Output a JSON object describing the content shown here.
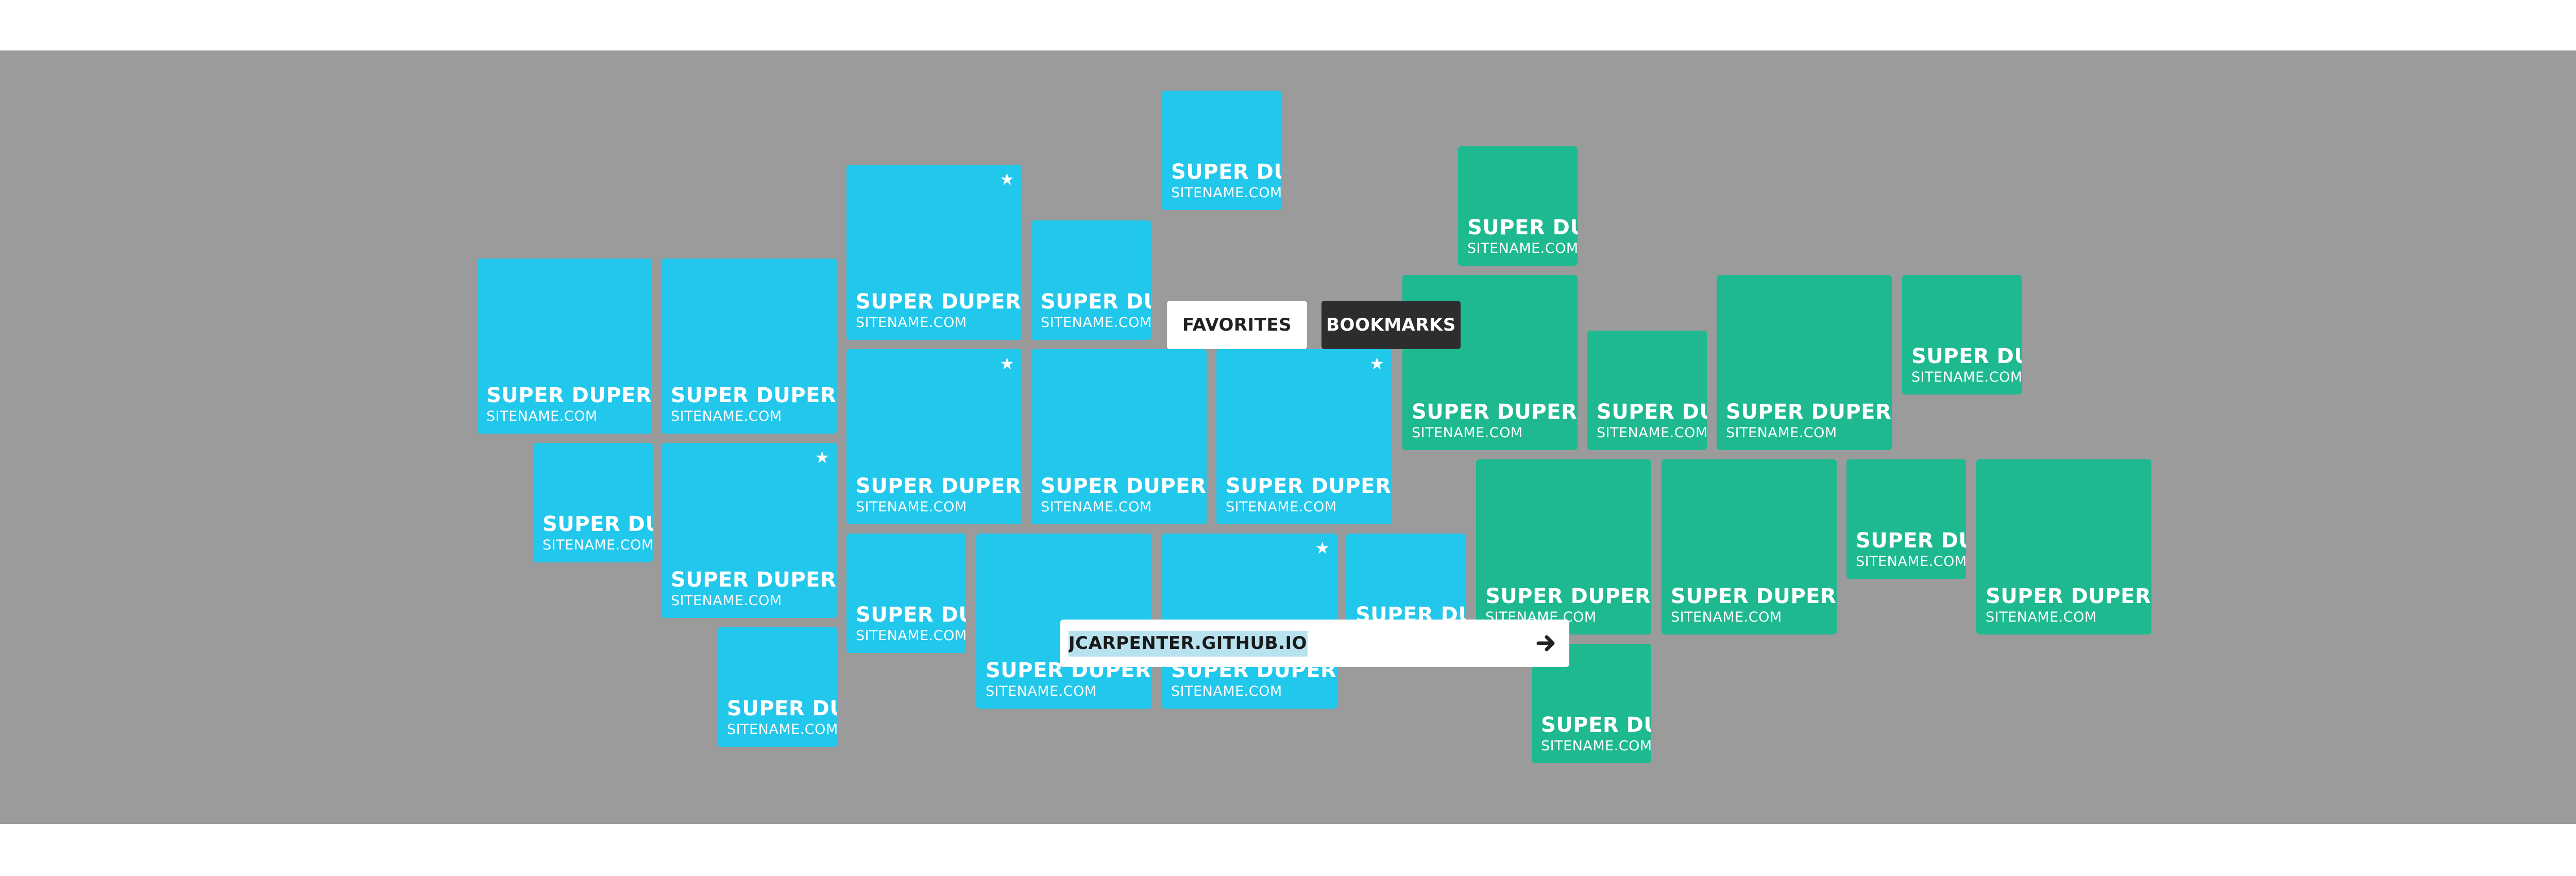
{
  "tiles": [
    {
      "label": "SUPER DUPER",
      "url": "SITENAME.COM",
      "color": "blue"
    },
    {
      "label": "SUPER DUPER",
      "url": "SITENAME.COM",
      "color": "blue"
    },
    {
      "label": "SUPER DU",
      "url": "SITENAME.COM",
      "color": "blue"
    },
    {
      "label": "SUPER DUPER",
      "url": "SITENAME.COM",
      "color": "blue",
      "starred": true
    },
    {
      "label": "SUPER DU",
      "url": "SITENAME.COM",
      "color": "blue"
    },
    {
      "label": "SUPER DUPER",
      "url": "SITENAME.COM",
      "color": "blue",
      "starred": true
    },
    {
      "label": "SUPER DU",
      "url": "SITENAME.COM",
      "color": "blue"
    },
    {
      "label": "SUPER DU",
      "url": "SITENAME.COM",
      "color": "blue"
    },
    {
      "label": "SUPER DUPER",
      "url": "SITENAME.COM",
      "color": "blue",
      "starred": true
    },
    {
      "label": "SUPER DUPER",
      "url": "SITENAME.COM",
      "color": "blue"
    },
    {
      "label": "SUPER DUPER",
      "url": "SITENAME.COM",
      "color": "blue",
      "starred": true
    },
    {
      "label": "SUPER DU",
      "url": "SITENAME.COM",
      "color": "blue"
    },
    {
      "label": "SUPER DUPER",
      "url": "SITENAME.COM",
      "color": "blue"
    },
    {
      "label": "SUPER DUPER",
      "url": "SITENAME.COM",
      "color": "blue",
      "starred": true
    },
    {
      "label": "SUPER DU",
      "url": "SITENAME.COM",
      "color": "blue"
    },
    {
      "label": "SUPER DU",
      "url": "SITENAME.COM",
      "color": "green"
    },
    {
      "label": "SUPER DUPER",
      "url": "SITENAME.COM",
      "color": "green"
    },
    {
      "label": "SUPER DU",
      "url": "SITENAME.COM",
      "color": "green"
    },
    {
      "label": "SUPER DUPER",
      "url": "SITENAME.COM",
      "color": "green"
    },
    {
      "label": "SUPER DU",
      "url": "SITENAME.COM",
      "color": "green"
    },
    {
      "label": "SUPER DUPER",
      "url": "SITENAME.COM",
      "color": "green"
    },
    {
      "label": "SUPER DUPER",
      "url": "SITENAME.COM",
      "color": "green"
    },
    {
      "label": "SUPER DU",
      "url": "SITENAME.COM",
      "color": "green"
    },
    {
      "label": "SUPER DUPER",
      "url": "SITENAME.COM",
      "color": "green"
    },
    {
      "label": "SUPER DU",
      "url": "SITENAME.COM",
      "color": "green"
    }
  ],
  "tabs": {
    "favorites": "FAVORITES",
    "bookmarks": "BOOKMARKS"
  },
  "url_bar": {
    "value": "JCARPENTER.GITHUB.IO",
    "go_icon": "arrow-right-icon"
  },
  "colors": {
    "blue_tile": "#22c7ec",
    "green_tile": "#1eb990",
    "background": "#9b9b9b",
    "bookmarks_tab": "#2d2d2d"
  }
}
